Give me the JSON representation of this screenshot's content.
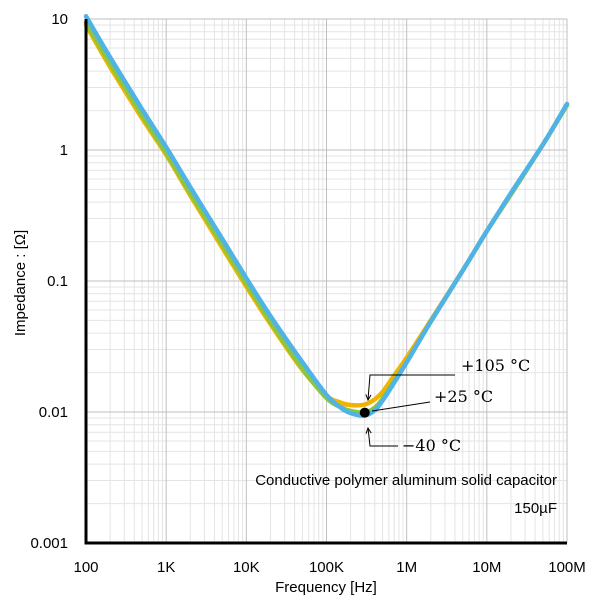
{
  "chart_data": {
    "type": "line",
    "title": "",
    "xlabel": "Frequency [Hz]",
    "ylabel": "Impedance : [Ω]",
    "x_scale": "log",
    "y_scale": "log",
    "xlim": [
      100,
      100000000
    ],
    "ylim": [
      0.001,
      10
    ],
    "grid": true,
    "x_ticks": [
      {
        "value": 100,
        "label": "100"
      },
      {
        "value": 1000,
        "label": "1K"
      },
      {
        "value": 10000,
        "label": "10K"
      },
      {
        "value": 100000,
        "label": "100K"
      },
      {
        "value": 1000000,
        "label": "1M"
      },
      {
        "value": 10000000,
        "label": "10M"
      },
      {
        "value": 100000000,
        "label": "100M"
      }
    ],
    "y_ticks": [
      {
        "value": 0.001,
        "label": "0.001"
      },
      {
        "value": 0.01,
        "label": "0.01"
      },
      {
        "value": 0.1,
        "label": "0.1"
      },
      {
        "value": 1,
        "label": "1"
      },
      {
        "value": 10,
        "label": "10"
      }
    ],
    "annotations": [
      "Conductive polymer aluminum solid capacitor",
      "150µF"
    ],
    "series": [
      {
        "name": "+105 °C",
        "color": "#f0b400",
        "x": [
          100,
          200,
          500,
          1000,
          2000,
          5000,
          10000,
          20000,
          50000,
          100000,
          150000,
          200000,
          300000,
          400000,
          500000,
          700000,
          1000000,
          2000000,
          5000000,
          10000000,
          20000000,
          50000000,
          100000000
        ],
        "y": [
          9.0,
          4.3,
          1.75,
          0.92,
          0.45,
          0.18,
          0.091,
          0.047,
          0.021,
          0.0133,
          0.0118,
          0.0113,
          0.0114,
          0.0125,
          0.0142,
          0.019,
          0.026,
          0.05,
          0.12,
          0.24,
          0.46,
          1.1,
          2.2
        ]
      },
      {
        "name": "+25 °C",
        "color": "#8cc63f",
        "x": [
          100,
          200,
          500,
          1000,
          2000,
          5000,
          10000,
          20000,
          50000,
          100000,
          150000,
          200000,
          300000,
          400000,
          500000,
          700000,
          1000000,
          2000000,
          5000000,
          10000000,
          20000000,
          50000000,
          100000000
        ],
        "y": [
          9.4,
          4.6,
          1.85,
          0.95,
          0.47,
          0.19,
          0.096,
          0.049,
          0.0215,
          0.0128,
          0.0109,
          0.0102,
          0.0099,
          0.0108,
          0.0126,
          0.0172,
          0.024,
          0.049,
          0.12,
          0.24,
          0.46,
          1.1,
          2.2
        ]
      },
      {
        "name": "−40 °C",
        "color": "#4fb3e8",
        "x": [
          100,
          200,
          500,
          1000,
          2000,
          5000,
          10000,
          20000,
          50000,
          100000,
          150000,
          200000,
          300000,
          400000,
          500000,
          700000,
          1000000,
          2000000,
          5000000,
          10000000,
          20000000,
          50000000,
          100000000
        ],
        "y": [
          10.5,
          5.1,
          2.05,
          1.05,
          0.52,
          0.21,
          0.105,
          0.054,
          0.024,
          0.0135,
          0.0108,
          0.0098,
          0.0094,
          0.0103,
          0.0122,
          0.0168,
          0.024,
          0.049,
          0.12,
          0.24,
          0.47,
          1.1,
          2.25
        ]
      }
    ],
    "marker": {
      "x": 300000,
      "y": 0.0099
    },
    "callouts": [
      {
        "series_index": 0,
        "label": "+105 °C"
      },
      {
        "series_index": 1,
        "label": "+25 °C"
      },
      {
        "series_index": 2,
        "label": "−40 °C"
      }
    ]
  }
}
